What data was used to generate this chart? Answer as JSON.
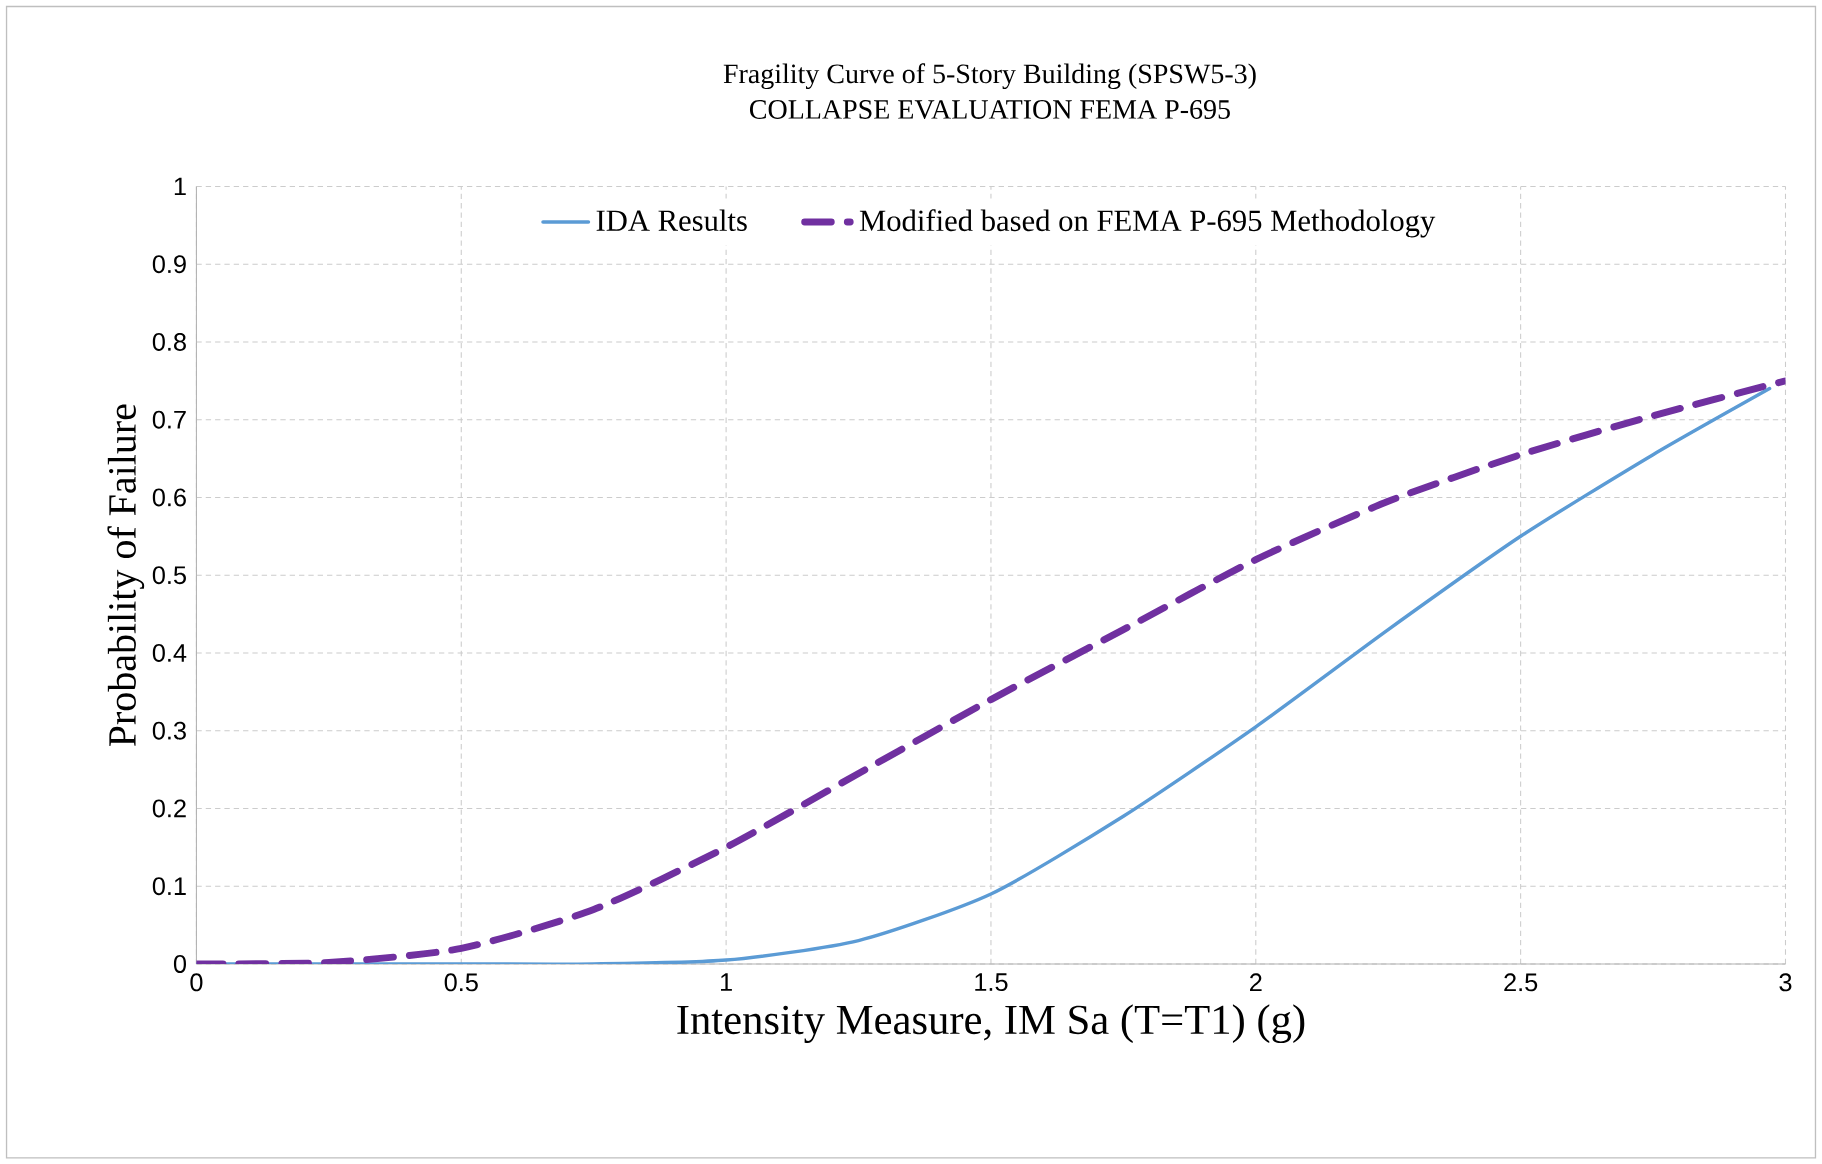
{
  "chart_data": {
    "type": "line",
    "title": "Fragility Curve of 5-Story Building (SPSW5-3)",
    "subtitle": "COLLAPSE EVALUATION FEMA P-695",
    "xlabel": "Intensity Measure, IM Sa (T=T1)  (g)",
    "ylabel": "Probability of Failure",
    "xlim": [
      0,
      3
    ],
    "ylim": [
      0,
      1
    ],
    "xticks": [
      0,
      0.5,
      1,
      1.5,
      2,
      2.5,
      3
    ],
    "yticks": [
      0,
      0.1,
      0.2,
      0.3,
      0.4,
      0.5,
      0.6,
      0.7,
      0.8,
      0.9,
      1
    ],
    "grid": true,
    "legend": "top",
    "marker": "none",
    "series": [
      {
        "name": "IDA Results",
        "color": "#5b9bd5",
        "line_style": "solid",
        "x": [
          0,
          0.5,
          0.75,
          1.0,
          1.25,
          1.5,
          1.75,
          2.0,
          2.25,
          2.5,
          2.75,
          2.97
        ],
        "values": [
          0,
          0,
          0,
          0.005,
          0.03,
          0.09,
          0.19,
          0.305,
          0.43,
          0.55,
          0.655,
          0.74
        ]
      },
      {
        "name": "Modified based on FEMA P-695 Methodology",
        "color": "#7030a0",
        "line_style": "dashed",
        "x": [
          0,
          0.25,
          0.5,
          0.75,
          1.0,
          1.25,
          1.5,
          1.75,
          2.0,
          2.25,
          2.5,
          2.75,
          3.0
        ],
        "values": [
          0,
          0.002,
          0.02,
          0.07,
          0.15,
          0.245,
          0.34,
          0.43,
          0.52,
          0.595,
          0.655,
          0.705,
          0.75
        ]
      }
    ]
  }
}
